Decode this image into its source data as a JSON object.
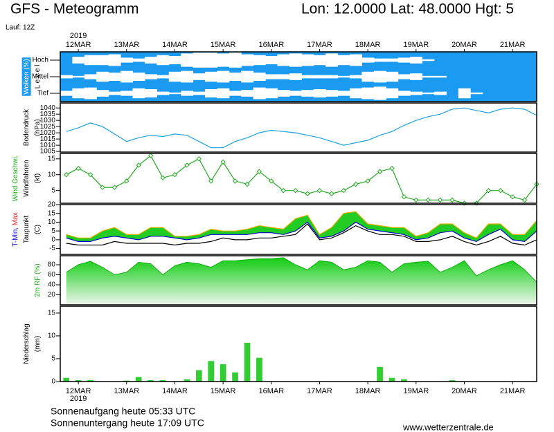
{
  "header": {
    "title": "GFS - Meteogramm",
    "location": "Lon: 12.0000 Lat: 48.0000 Hgt: 5",
    "run": "Lauf: 12Z"
  },
  "footer": {
    "sunrise": "Sonnenaufgang heute 05:33 UTC",
    "sunset": "Sonnenuntergang heute 17:09 UTC",
    "source": "www.wetterzentrale.de"
  },
  "chart_data": [
    {
      "type": "heatmap",
      "background": "#1a9af0",
      "cloud_color": "#ffffff",
      "ylabel": [
        [
          {
            "text": "Wolken (%)",
            "color": "#ffffff",
            "background": "#1a9af0"
          }
        ],
        [
          {
            "text": "L e v e l",
            "color": "#000000"
          }
        ]
      ],
      "year": "2019",
      "xlim": [
        -9,
        228
      ],
      "xticks": [
        {
          "value": 0,
          "label": "12MAR"
        },
        {
          "value": 24,
          "label": "13MAR"
        },
        {
          "value": 48,
          "label": "14MAR"
        },
        {
          "value": 72,
          "label": "15MAR"
        },
        {
          "value": 96,
          "label": "16MAR"
        },
        {
          "value": 120,
          "label": "17MAR"
        },
        {
          "value": 144,
          "label": "18MAR"
        },
        {
          "value": 168,
          "label": "19MAR"
        },
        {
          "value": 192,
          "label": "20MAR"
        },
        {
          "value": 216,
          "label": "21MAR"
        }
      ],
      "x": [
        -6,
        0,
        6,
        12,
        18,
        24,
        30,
        36,
        42,
        48,
        54,
        60,
        66,
        72,
        78,
        84,
        90,
        96,
        102,
        108,
        114,
        120,
        126,
        132,
        138,
        144,
        150,
        156,
        162,
        168,
        174,
        180,
        186,
        192,
        198,
        204,
        210,
        216,
        222,
        228
      ],
      "series": [
        {
          "name": "Hoch",
          "values": [
            0,
            40,
            60,
            60,
            70,
            30,
            20,
            40,
            60,
            50,
            80,
            90,
            90,
            80,
            90,
            70,
            60,
            50,
            70,
            80,
            70,
            60,
            80,
            60,
            70,
            30,
            20,
            20,
            30,
            40,
            10,
            0,
            0,
            0,
            0,
            0,
            0,
            0,
            0,
            0
          ]
        },
        {
          "name": "Mittel",
          "values": [
            20,
            10,
            30,
            60,
            50,
            70,
            50,
            30,
            20,
            60,
            70,
            40,
            60,
            70,
            50,
            70,
            50,
            30,
            30,
            40,
            20,
            20,
            20,
            10,
            20,
            60,
            70,
            60,
            30,
            40,
            10,
            10,
            0,
            0,
            0,
            0,
            0,
            0,
            0,
            0
          ]
        },
        {
          "name": "Tief",
          "values": [
            30,
            60,
            70,
            40,
            20,
            30,
            60,
            50,
            20,
            10,
            30,
            20,
            50,
            60,
            30,
            40,
            70,
            60,
            40,
            30,
            40,
            50,
            40,
            30,
            60,
            70,
            80,
            60,
            30,
            20,
            10,
            20,
            0,
            60,
            10,
            0,
            0,
            0,
            0,
            0
          ]
        }
      ]
    },
    {
      "type": "line",
      "ylabel": [
        [
          {
            "text": "Bodendruck",
            "color": "#000000"
          }
        ],
        [
          {
            "text": "(hPa)",
            "color": "#000000"
          }
        ]
      ],
      "xlim": [
        -9,
        228
      ],
      "ylim": [
        1004.5,
        1044
      ],
      "yticks": [
        1005,
        1010,
        1015,
        1020,
        1025,
        1030,
        1035,
        1040
      ],
      "x": [
        -6,
        0,
        6,
        12,
        18,
        24,
        30,
        36,
        42,
        48,
        54,
        60,
        66,
        72,
        78,
        84,
        90,
        96,
        102,
        108,
        114,
        120,
        126,
        132,
        138,
        144,
        150,
        156,
        162,
        168,
        174,
        180,
        186,
        192,
        198,
        204,
        210,
        216,
        222,
        228
      ],
      "series": [
        {
          "color": "#1aa0e0",
          "values": [
            1021,
            1024,
            1028,
            1025,
            1019,
            1013,
            1016,
            1018,
            1017,
            1019,
            1018,
            1013,
            1008,
            1008,
            1013,
            1016,
            1020,
            1022,
            1021,
            1020,
            1018,
            1016,
            1013,
            1010,
            1012,
            1014,
            1018,
            1021,
            1026,
            1030,
            1033,
            1035,
            1039,
            1040,
            1038,
            1036,
            1039,
            1040,
            1039,
            1034
          ]
        }
      ]
    },
    {
      "type": "line",
      "marker": "diamond",
      "ylabel": [
        [
          {
            "text": "Wind Geschwi.",
            "color": "#22aa22"
          }
        ],
        [
          {
            "text": "Windfahnen",
            "color": "#000000"
          }
        ],
        [
          {
            "text": "(kt)",
            "color": "#000000"
          }
        ]
      ],
      "xlim": [
        -9,
        228
      ],
      "ylim": [
        1,
        16.7
      ],
      "yticks": [
        5,
        10,
        15
      ],
      "x": [
        -6,
        0,
        6,
        12,
        18,
        24,
        30,
        36,
        42,
        48,
        54,
        60,
        66,
        72,
        78,
        84,
        90,
        96,
        102,
        108,
        114,
        120,
        126,
        132,
        138,
        144,
        150,
        156,
        162,
        168,
        174,
        180,
        186,
        192,
        198,
        204,
        210,
        216,
        222,
        228
      ],
      "series": [
        {
          "color": "#22aa22",
          "values": [
            10,
            12,
            10,
            6,
            6,
            8,
            13,
            16,
            9,
            10,
            13,
            15,
            8,
            14,
            8,
            7,
            11,
            8,
            5,
            5,
            4,
            5,
            4,
            5,
            7,
            8,
            11,
            12,
            3,
            2,
            2,
            2,
            2,
            1,
            1,
            5,
            5,
            3,
            2,
            7
          ]
        }
      ]
    },
    {
      "type": "band",
      "fill": "#22cc22",
      "ylabel": [
        [
          {
            "text": "T-Min, ",
            "color": "#0000cc"
          },
          {
            "text": "Max",
            "color": "#dd2222"
          }
        ],
        [
          {
            "text": "Taupunkt",
            "color": "#000000"
          }
        ],
        [
          {
            "text": "(C)",
            "color": "#000000"
          }
        ]
      ],
      "xlim": [
        -9,
        228
      ],
      "ylim": [
        -8.3,
        20
      ],
      "yticks": [
        -5,
        0,
        5,
        10,
        15,
        20
      ],
      "x": [
        -6,
        0,
        6,
        12,
        18,
        24,
        30,
        36,
        42,
        48,
        54,
        60,
        66,
        72,
        78,
        84,
        90,
        96,
        102,
        108,
        114,
        120,
        126,
        132,
        138,
        144,
        150,
        156,
        162,
        168,
        174,
        180,
        186,
        192,
        198,
        204,
        210,
        216,
        222,
        228
      ],
      "series": [
        {
          "color": "#e0b000",
          "values": [
            3,
            1,
            1,
            5,
            7,
            3,
            3,
            7,
            7,
            2,
            2,
            3,
            6,
            5,
            5,
            6,
            8,
            7,
            6,
            12,
            14,
            3,
            7,
            15,
            16,
            9,
            8,
            7,
            7,
            2,
            4,
            9,
            9,
            4,
            1,
            9,
            9,
            3,
            3,
            11
          ]
        },
        {
          "color": "#0000cc",
          "values": [
            1,
            -1,
            -1,
            1,
            2,
            1,
            0,
            2,
            2,
            1,
            0,
            1,
            3,
            3,
            3,
            3,
            4,
            4,
            3,
            5,
            10,
            1,
            2,
            5,
            10,
            6,
            5,
            4,
            3,
            0,
            1,
            4,
            5,
            1,
            -1,
            3,
            6,
            0,
            -1,
            5
          ]
        },
        {
          "color": "#000000",
          "values": [
            -2,
            -3,
            -3,
            -3,
            -1,
            -2,
            -2,
            -2,
            -2,
            -3,
            -2,
            -2,
            -1,
            1,
            0,
            0,
            1,
            1,
            2,
            3,
            9,
            0,
            1,
            4,
            8,
            5,
            3,
            3,
            2,
            -1,
            -1,
            0,
            2,
            -1,
            -3,
            -1,
            2,
            -2,
            -3,
            0
          ]
        }
      ]
    },
    {
      "type": "area",
      "fill": "#11cc11",
      "fill_bottom": "#eef6ee",
      "ylabel": [
        [
          {
            "text": "2m RF (%)",
            "color": "#22aa22"
          }
        ]
      ],
      "xlim": [
        -9,
        228
      ],
      "ylim": [
        0,
        98
      ],
      "yticks": [
        20,
        40,
        60,
        80
      ],
      "x": [
        -6,
        0,
        6,
        12,
        18,
        24,
        30,
        36,
        42,
        48,
        54,
        60,
        66,
        72,
        78,
        84,
        90,
        96,
        102,
        108,
        114,
        120,
        126,
        132,
        138,
        144,
        150,
        156,
        162,
        168,
        174,
        180,
        186,
        192,
        198,
        204,
        210,
        216,
        222,
        228
      ],
      "series": [
        {
          "color": "#11aa11",
          "values": [
            65,
            80,
            87,
            75,
            60,
            65,
            85,
            82,
            60,
            78,
            85,
            82,
            75,
            88,
            88,
            90,
            92,
            92,
            94,
            80,
            70,
            88,
            85,
            70,
            75,
            88,
            85,
            65,
            82,
            85,
            87,
            65,
            75,
            88,
            58,
            70,
            80,
            88,
            70,
            45
          ]
        }
      ]
    },
    {
      "type": "bar",
      "ylabel": [
        [
          {
            "text": "Niederschlag",
            "color": "#000000"
          }
        ],
        [
          {
            "text": "(mm)",
            "color": "#000000"
          }
        ]
      ],
      "year": "2019",
      "xlim": [
        -9,
        228
      ],
      "ylim": [
        0,
        16.5
      ],
      "yticks": [
        0,
        5,
        10,
        15
      ],
      "xticks": [
        {
          "value": 0,
          "label": "12MAR"
        },
        {
          "value": 24,
          "label": "13MAR"
        },
        {
          "value": 48,
          "label": "14MAR"
        },
        {
          "value": 72,
          "label": "15MAR"
        },
        {
          "value": 96,
          "label": "16MAR"
        },
        {
          "value": 120,
          "label": "17MAR"
        },
        {
          "value": 144,
          "label": "18MAR"
        },
        {
          "value": 168,
          "label": "19MAR"
        },
        {
          "value": 192,
          "label": "20MAR"
        },
        {
          "value": 216,
          "label": "21MAR"
        }
      ],
      "x": [
        -6,
        0,
        6,
        12,
        18,
        24,
        30,
        36,
        42,
        48,
        54,
        60,
        66,
        72,
        78,
        84,
        90,
        96,
        102,
        108,
        114,
        120,
        126,
        132,
        138,
        144,
        150,
        156,
        162,
        168,
        174,
        180,
        186,
        192,
        198,
        204,
        210,
        216,
        222,
        228
      ],
      "series": [
        {
          "color": "#33cc33",
          "values": [
            0.8,
            0.3,
            0.3,
            0,
            0,
            0.2,
            1,
            0.3,
            0.3,
            0,
            0.5,
            2.5,
            4.5,
            3.8,
            2,
            8.5,
            5.2,
            0,
            0,
            0,
            0,
            0,
            0,
            0,
            0,
            0,
            3.2,
            0.8,
            0.5,
            0,
            0,
            0,
            0.3,
            0,
            0,
            0,
            0,
            0,
            0,
            0
          ]
        }
      ]
    }
  ]
}
